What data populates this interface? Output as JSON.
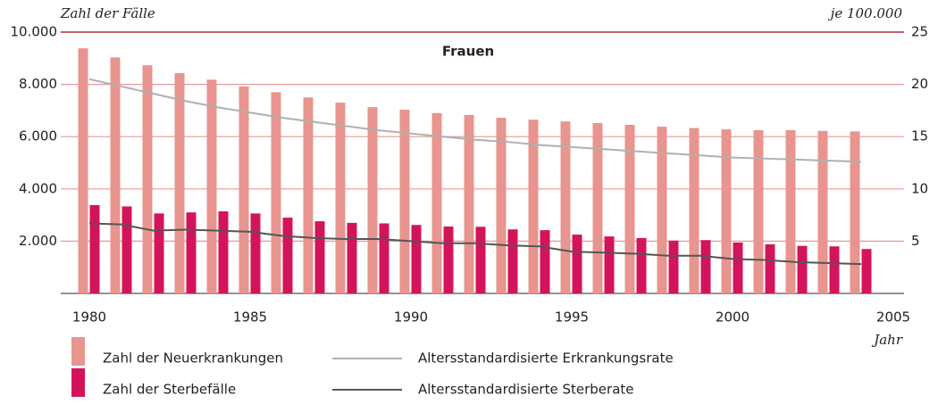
{
  "chart_data": {
    "type": "bar",
    "title": "Frauen",
    "y_label": "Zahl der Fälle",
    "y2_label": "je 100.000",
    "x_label": "Jahr",
    "x": [
      1980,
      1981,
      1982,
      1983,
      1984,
      1985,
      1986,
      1987,
      1988,
      1989,
      1990,
      1991,
      1992,
      1993,
      1994,
      1995,
      1996,
      1997,
      1998,
      1999,
      2000,
      2001,
      2002,
      2003,
      2004
    ],
    "series": [
      {
        "name": "Zahl der Neuerkrankungen",
        "type": "bar",
        "color": "#e8948f",
        "values": [
          9380,
          9030,
          8730,
          8430,
          8180,
          7920,
          7700,
          7500,
          7300,
          7130,
          7030,
          6900,
          6830,
          6720,
          6650,
          6580,
          6520,
          6450,
          6380,
          6330,
          6280,
          6250,
          6250,
          6220,
          6200
        ]
      },
      {
        "name": "Zahl der Sterbefälle",
        "type": "bar",
        "color": "#d4145a",
        "values": [
          3380,
          3330,
          3060,
          3100,
          3140,
          3060,
          2900,
          2760,
          2700,
          2680,
          2620,
          2560,
          2550,
          2450,
          2420,
          2250,
          2180,
          2120,
          2020,
          2040,
          1950,
          1880,
          1820,
          1800,
          1700
        ]
      },
      {
        "name": "Altersstandardisierte Erkrankungsrate",
        "type": "line",
        "axis": "y2",
        "color": "#b0b0b0",
        "values": [
          20.5,
          19.8,
          19.1,
          18.4,
          17.8,
          17.3,
          16.8,
          16.4,
          16.0,
          15.6,
          15.3,
          15.0,
          14.7,
          14.5,
          14.2,
          14.0,
          13.8,
          13.6,
          13.4,
          13.2,
          13.0,
          12.9,
          12.8,
          12.7,
          12.6
        ]
      },
      {
        "name": "Altersstandardisierte Sterberate",
        "type": "line",
        "axis": "y2",
        "color": "#555555",
        "values": [
          6.7,
          6.6,
          6.0,
          6.1,
          6.0,
          5.9,
          5.5,
          5.3,
          5.2,
          5.2,
          5.0,
          4.8,
          4.8,
          4.6,
          4.5,
          4.0,
          3.9,
          3.8,
          3.6,
          3.6,
          3.3,
          3.2,
          3.0,
          2.9,
          2.8
        ]
      }
    ],
    "xlim": [
      1980,
      2005
    ],
    "xticks": [
      1980,
      1985,
      1990,
      1995,
      2000,
      2005
    ],
    "ylim": [
      0,
      10000
    ],
    "yticks": [
      {
        "value": 2000,
        "label": "2.000"
      },
      {
        "value": 4000,
        "label": "4.000"
      },
      {
        "value": 6000,
        "label": "6.000"
      },
      {
        "value": 8000,
        "label": "8.000"
      },
      {
        "value": 10000,
        "label": "10.000"
      }
    ],
    "y2lim": [
      0,
      25
    ],
    "y2ticks": [
      5,
      10,
      15,
      20,
      25
    ],
    "grid": true
  }
}
